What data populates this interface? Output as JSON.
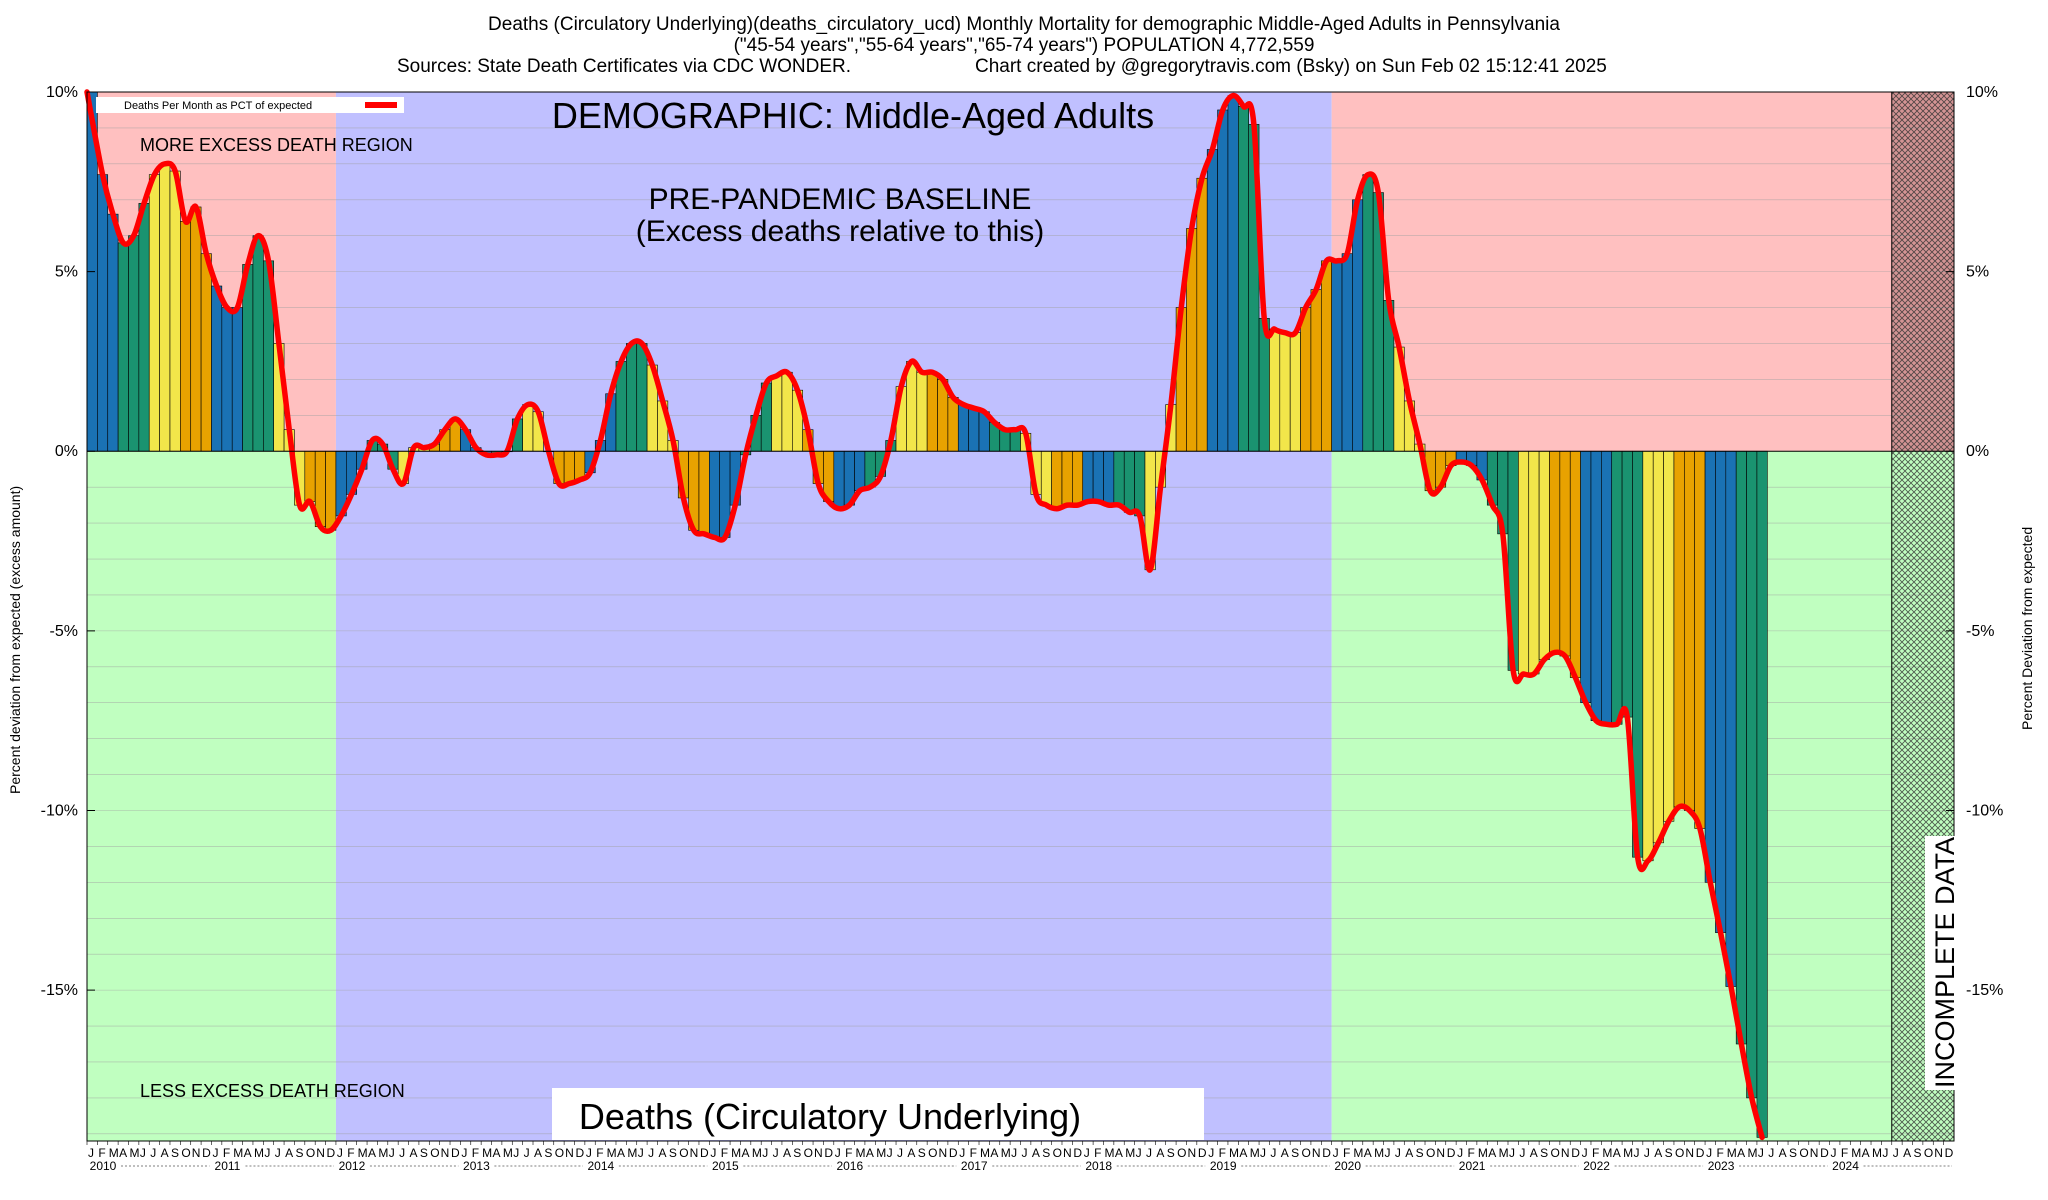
{
  "header": {
    "title_line1": "Deaths (Circulatory Underlying)(deaths_circulatory_ucd) Monthly Mortality for demographic Middle-Aged Adults in Pennsylvania",
    "title_line2": "(\"45-54 years\",\"55-64 years\",\"65-74 years\") POPULATION 4,772,559",
    "sources": "Sources: State Death Certificates via CDC WONDER.",
    "credit": "Chart created by @gregorytravis.com (Bsky) on Sun Feb 02 15:12:41 2025"
  },
  "chart_data": {
    "type": "bar",
    "ylabel_left": "Percent deviation from expected (excess amount)",
    "ylabel_right": "Percent Deviation from expected",
    "ylim": [
      -19.2,
      10
    ],
    "y_ticks": [
      10,
      5,
      0,
      -5,
      -10,
      -15
    ],
    "y_tick_labels": [
      "10%",
      "5%",
      "0%",
      "-5%",
      "-10%",
      "-15%"
    ],
    "years": [
      "2010",
      "2011",
      "2012",
      "2013",
      "2014",
      "2015",
      "2016",
      "2017",
      "2018",
      "2019",
      "2020",
      "2021",
      "2022",
      "2023",
      "2024"
    ],
    "month_initials": [
      "J",
      "F",
      "M",
      "A",
      "M",
      "J",
      "J",
      "A",
      "S",
      "O",
      "N",
      "D"
    ],
    "grid": true,
    "legend": {
      "label": "Deaths Per Month as PCT of expected",
      "position": "top-left",
      "color": "#ff0000"
    },
    "series": [
      {
        "name": "Deaths Per Month as PCT of expected",
        "values": [
          10.0,
          7.7,
          6.6,
          5.8,
          6.0,
          6.9,
          7.7,
          8.0,
          7.8,
          6.4,
          6.8,
          5.5,
          4.6,
          4.0,
          4.0,
          5.2,
          6.0,
          5.3,
          3.0,
          0.6,
          -1.5,
          -1.4,
          -2.1,
          -2.2,
          -1.8,
          -1.2,
          -0.5,
          0.3,
          0.2,
          -0.5,
          -0.9,
          0.1,
          0.1,
          0.2,
          0.6,
          0.9,
          0.6,
          0.1,
          -0.1,
          -0.1,
          0.0,
          0.9,
          1.3,
          1.1,
          0.0,
          -0.9,
          -0.9,
          -0.8,
          -0.6,
          0.3,
          1.6,
          2.5,
          3.0,
          3.0,
          2.4,
          1.4,
          0.3,
          -1.3,
          -2.2,
          -2.3,
          -2.4,
          -2.4,
          -1.5,
          -0.1,
          1.0,
          1.9,
          2.1,
          2.2,
          1.7,
          0.6,
          -0.9,
          -1.4,
          -1.6,
          -1.5,
          -1.1,
          -1.0,
          -0.7,
          0.3,
          1.8,
          2.5,
          2.2,
          2.2,
          2.0,
          1.5,
          1.3,
          1.2,
          1.1,
          0.8,
          0.6,
          0.6,
          0.5,
          -1.2,
          -1.5,
          -1.6,
          -1.5,
          -1.5,
          -1.4,
          -1.4,
          -1.5,
          -1.5,
          -1.7,
          -1.8,
          -3.3,
          -1.0,
          1.3,
          4.0,
          6.2,
          7.6,
          8.4,
          9.5,
          9.9,
          9.6,
          9.1,
          3.7,
          3.4,
          3.3,
          3.3,
          4.0,
          4.5,
          5.3,
          5.3,
          5.5,
          7.0,
          7.7,
          7.2,
          4.2,
          2.9,
          1.4,
          0.2,
          -1.1,
          -1.0,
          -0.4,
          -0.3,
          -0.4,
          -0.8,
          -1.5,
          -2.3,
          -6.1,
          -6.2,
          -6.2,
          -5.8,
          -5.6,
          -5.7,
          -6.3,
          -7.0,
          -7.5,
          -7.6,
          -7.6,
          -7.4,
          -11.3,
          -11.4,
          -10.9,
          -10.3,
          -9.9,
          -10.0,
          -10.5,
          -12.0,
          -13.4,
          -14.9,
          -16.5,
          -18.0,
          -19.1
        ]
      }
    ],
    "bar_colors": [
      "#1a72b4",
      "#1a9370",
      "#f2e64a",
      "#e8a200"
    ],
    "line_color": "#ff0000"
  },
  "regions": {
    "more_excess_color": "#ffc0c0",
    "less_excess_color": "#c0ffc0",
    "baseline_color": "#c0c0ff",
    "incomplete_color": "#a06060"
  },
  "annotations": {
    "demographic": "DEMOGRAPHIC: Middle-Aged Adults",
    "baseline_line1": "PRE-PANDEMIC BASELINE",
    "baseline_line2": "(Excess deaths relative to this)",
    "more_region": "MORE EXCESS DEATH REGION",
    "less_region": "LESS EXCESS DEATH REGION",
    "bottom_label": "Deaths (Circulatory Underlying)",
    "incomplete": "INCOMPLETE DATA"
  }
}
